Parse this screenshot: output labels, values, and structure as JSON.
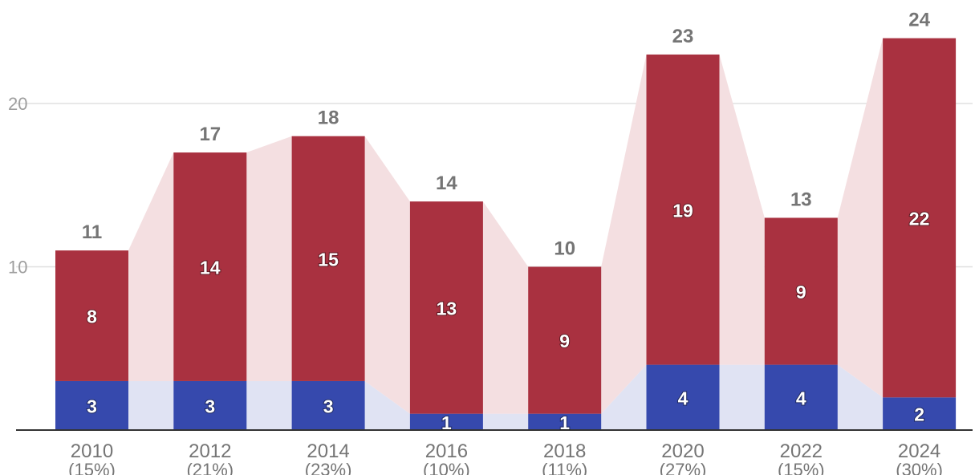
{
  "chart_data": {
    "type": "bar",
    "stacked": true,
    "categories": [
      "2010",
      "2012",
      "2014",
      "2016",
      "2018",
      "2020",
      "2022",
      "2024"
    ],
    "category_sublabels": [
      "(15%)",
      "(21%)",
      "(23%)",
      "(10%)",
      "(11%)",
      "(27%)",
      "(15%)",
      "(30%)"
    ],
    "series": [
      {
        "values": [
          3,
          3,
          3,
          1,
          1,
          4,
          4,
          2
        ],
        "color": "#3649ad",
        "band_color": "#e0e3f3"
      },
      {
        "values": [
          8,
          14,
          15,
          13,
          9,
          19,
          9,
          22
        ],
        "color": "#a93140",
        "band_color": "#f4dfe1"
      }
    ],
    "totals": [
      11,
      17,
      18,
      14,
      10,
      23,
      13,
      24
    ],
    "title": "",
    "xlabel": "",
    "ylabel": "",
    "ylim": [
      0,
      26
    ],
    "yticks": [
      10,
      20
    ],
    "ytick_labels": [
      "10",
      "20"
    ],
    "grid": true,
    "axis_color": "#333333",
    "grid_color": "#e0e0e0"
  }
}
